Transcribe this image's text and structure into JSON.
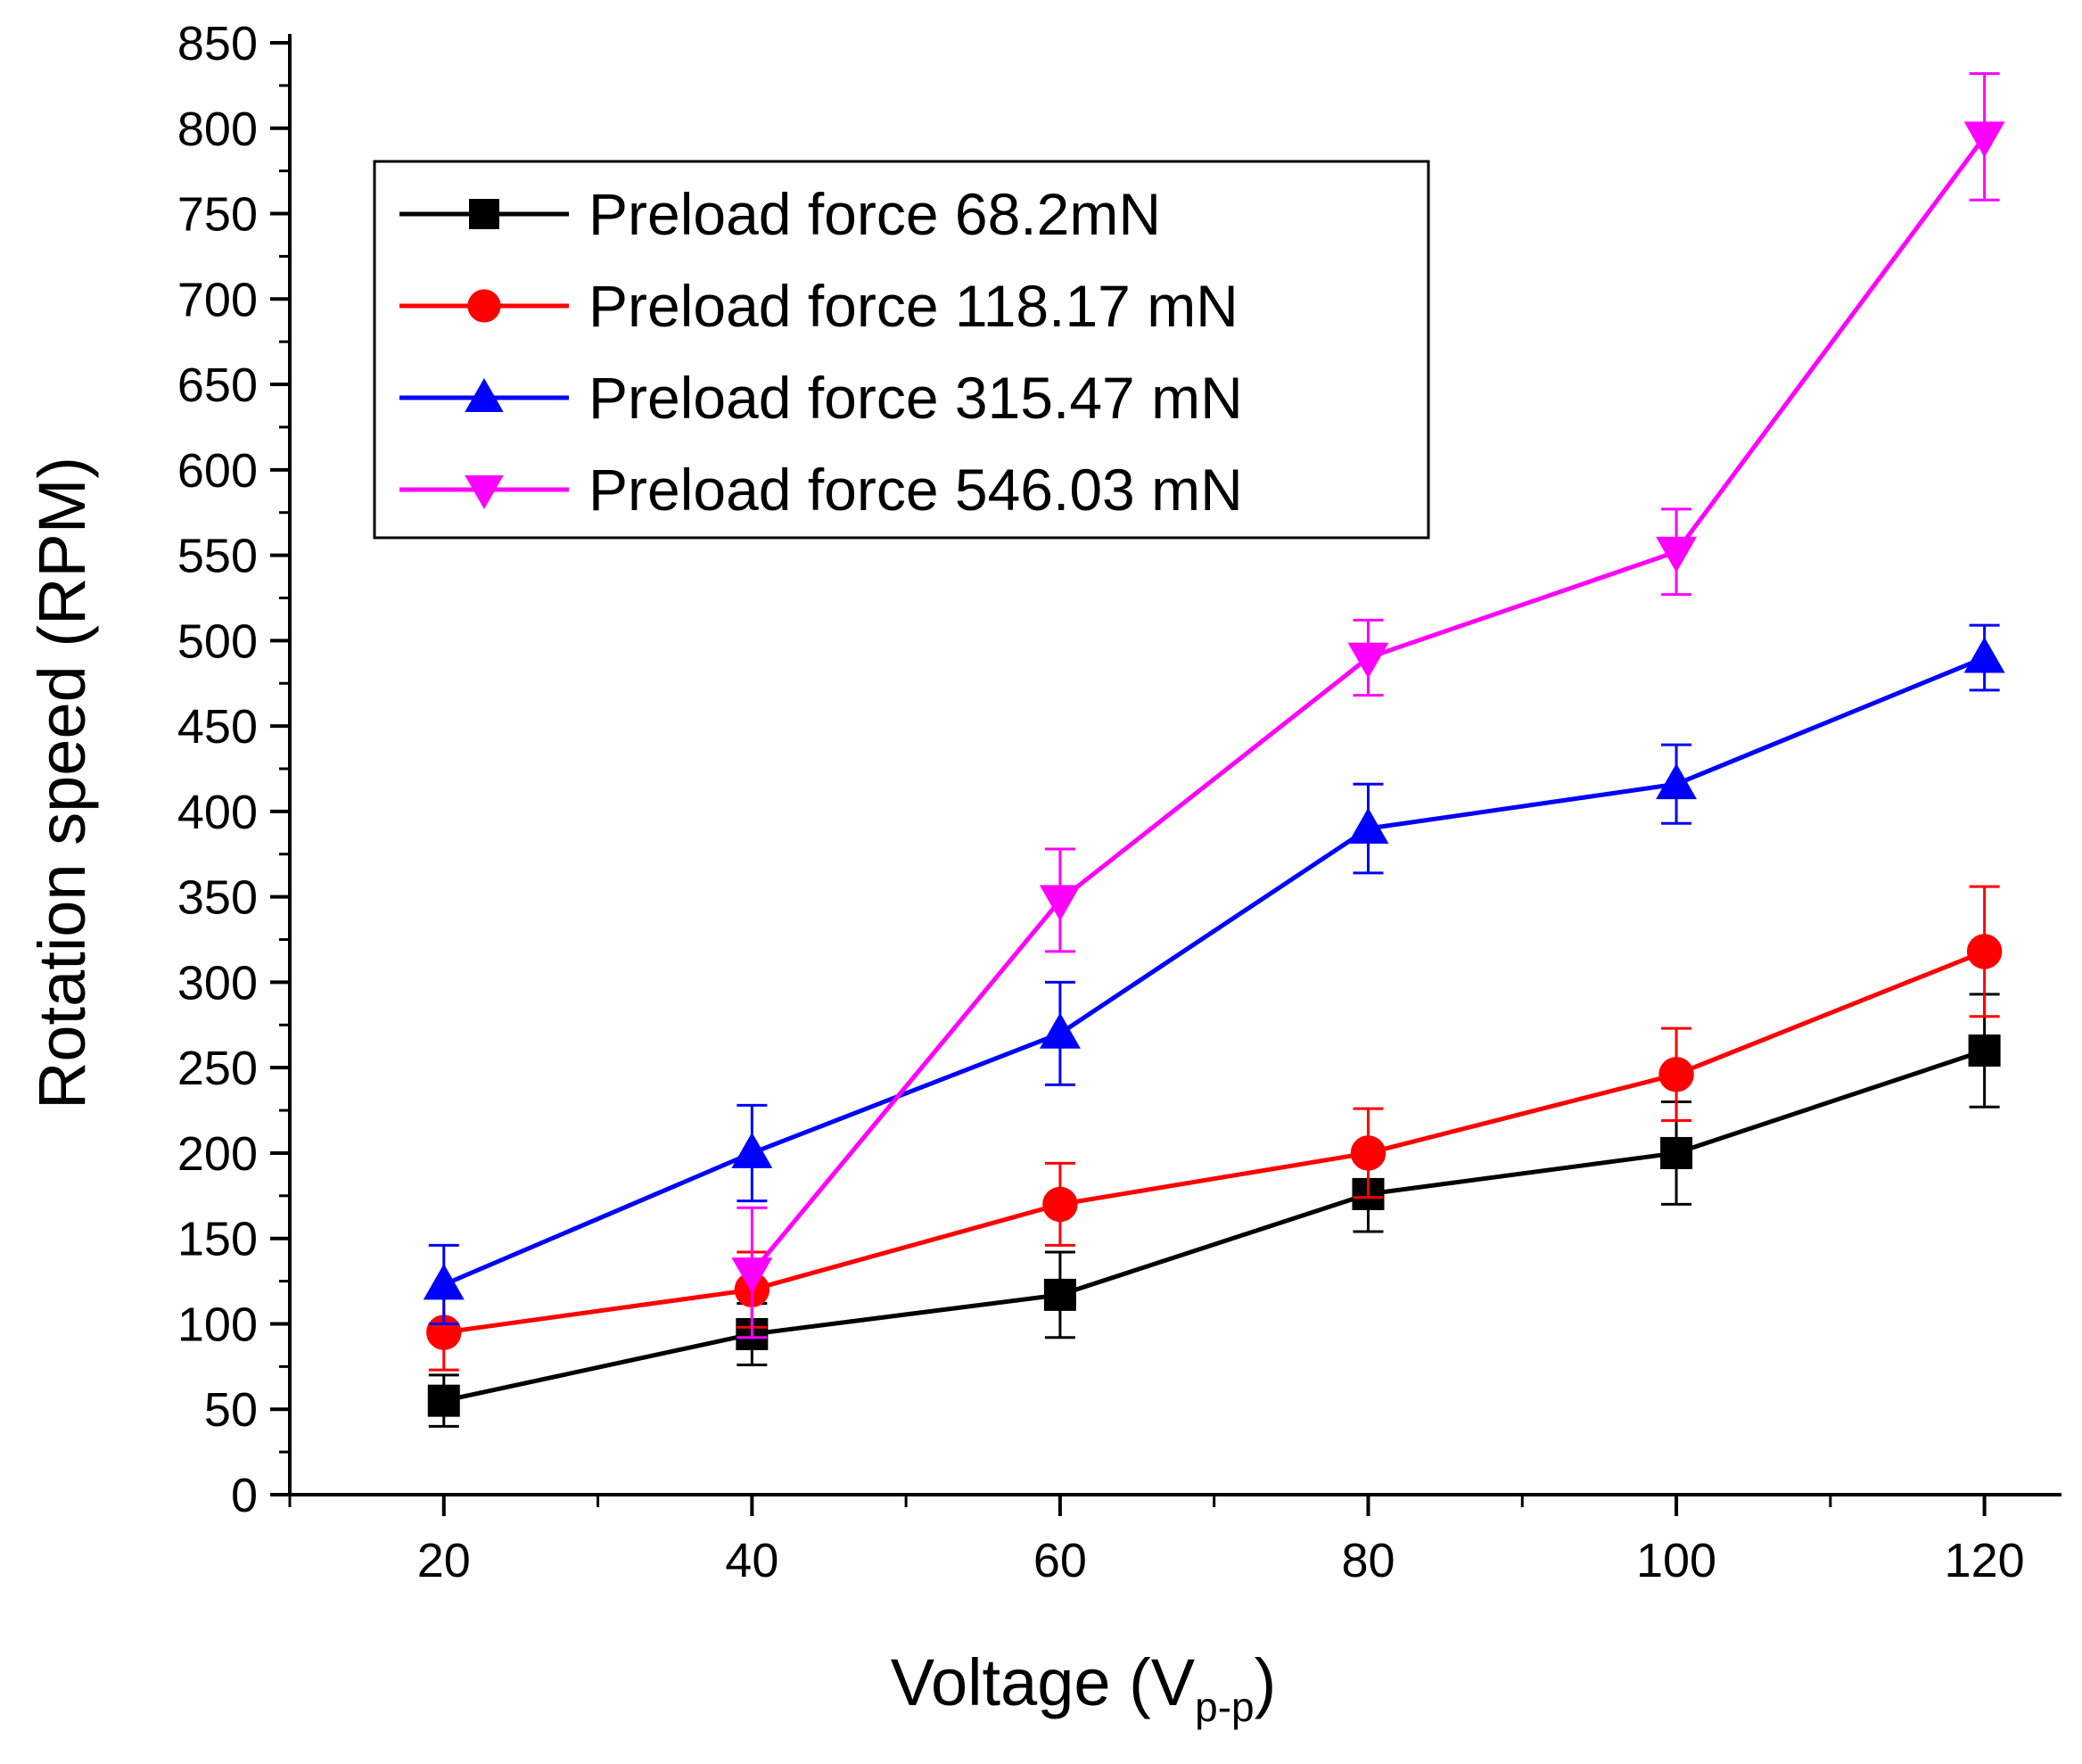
{
  "chart_data": {
    "type": "line",
    "title": "",
    "xlabel": "Voltage (V",
    "xlabel_subscript": "p-p",
    "xlabel_suffix": ")",
    "ylabel": "Rotation speed (RPM)",
    "xlim": [
      10,
      125
    ],
    "ylim": [
      0,
      850
    ],
    "x_ticks": [
      20,
      40,
      60,
      80,
      100,
      120
    ],
    "x_tick_labels": [
      "20",
      "40",
      "60",
      "80",
      "100",
      "120"
    ],
    "x_minor_ticks": [
      10,
      30,
      50,
      70,
      90,
      110
    ],
    "y_ticks": [
      0,
      50,
      100,
      150,
      200,
      250,
      300,
      350,
      400,
      450,
      500,
      550,
      600,
      650,
      700,
      750,
      800,
      850
    ],
    "y_tick_labels": [
      "0",
      "50",
      "100",
      "150",
      "200",
      "250",
      "300",
      "350",
      "400",
      "450",
      "500",
      "550",
      "600",
      "650",
      "700",
      "750",
      "800",
      "850"
    ],
    "grid": false,
    "legend_position": "top-left",
    "x": [
      20,
      40,
      60,
      80,
      100,
      120
    ],
    "series": [
      {
        "name": "Preload force 68.2mN",
        "color": "#000000",
        "marker": "square",
        "values": [
          55,
          94,
          117,
          176,
          200,
          260
        ],
        "errors": [
          15,
          18,
          25,
          22,
          30,
          33
        ]
      },
      {
        "name": "Preload force 118.17 mN",
        "color": "#ff0000",
        "marker": "circle",
        "values": [
          95,
          120,
          170,
          200,
          246,
          318
        ],
        "errors": [
          22,
          22,
          24,
          26,
          27,
          38
        ]
      },
      {
        "name": "Preload force 315.47 mN",
        "color": "#0000ff",
        "marker": "triangle-up",
        "values": [
          123,
          200,
          270,
          390,
          416,
          490
        ],
        "errors": [
          23,
          28,
          30,
          26,
          23,
          19
        ]
      },
      {
        "name": "Preload force 546.03 mN",
        "color": "#ff00ff",
        "marker": "triangle-down",
        "values": [
          null,
          130,
          348,
          490,
          552,
          795
        ],
        "errors": [
          null,
          38,
          30,
          22,
          25,
          37
        ]
      }
    ]
  }
}
